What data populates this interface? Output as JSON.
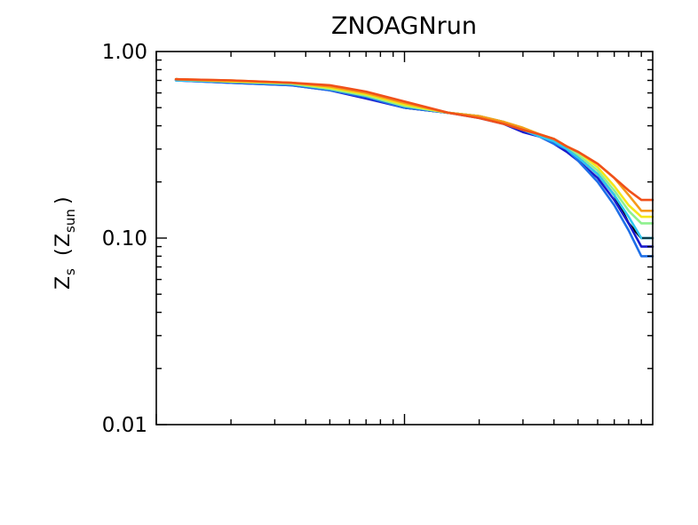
{
  "chart_data": {
    "type": "line",
    "title": "ZNOAGNrun",
    "xlabel": "",
    "ylabel": {
      "main": "Z",
      "main_sub": "s",
      "paren_main": "Z",
      "paren_sub": "sun"
    },
    "x_scale": "log",
    "y_scale": "log",
    "xlim": [
      0.1,
      10
    ],
    "ylim": [
      0.01,
      1.0
    ],
    "y_ticks": [
      {
        "value": 1.0,
        "label": "1.00"
      },
      {
        "value": 0.1,
        "label": "0.10"
      },
      {
        "value": 0.01,
        "label": "0.01"
      }
    ],
    "x_ticks_major": [
      1,
      10
    ],
    "x_tick_labels_shown": false,
    "grid": false,
    "legend": "none",
    "series": [
      {
        "color": "#000000",
        "x": [
          0.12,
          0.2,
          0.35,
          0.5,
          0.7,
          1,
          1.5,
          2,
          2.5,
          3,
          3.5,
          4,
          4.5,
          5,
          6,
          7,
          8,
          9,
          10
        ],
        "y": [
          0.71,
          0.69,
          0.67,
          0.63,
          0.57,
          0.5,
          0.47,
          0.45,
          0.42,
          0.38,
          0.35,
          0.33,
          0.3,
          0.27,
          0.22,
          0.17,
          0.12,
          0.1,
          0.1
        ]
      },
      {
        "color": "#1a1acc",
        "x": [
          0.12,
          0.2,
          0.35,
          0.5,
          0.7,
          1,
          1.5,
          2,
          2.5,
          3,
          3.5,
          4,
          4.5,
          5,
          6,
          7,
          8,
          9,
          10
        ],
        "y": [
          0.7,
          0.68,
          0.66,
          0.62,
          0.56,
          0.5,
          0.47,
          0.44,
          0.41,
          0.37,
          0.35,
          0.32,
          0.29,
          0.26,
          0.21,
          0.16,
          0.12,
          0.09,
          0.09
        ]
      },
      {
        "color": "#1e6fe8",
        "x": [
          0.12,
          0.2,
          0.35,
          0.5,
          0.7,
          1,
          1.5,
          2,
          2.5,
          3,
          3.5,
          4,
          4.5,
          5,
          6,
          7,
          8,
          9,
          10
        ],
        "y": [
          0.7,
          0.68,
          0.66,
          0.62,
          0.57,
          0.5,
          0.47,
          0.45,
          0.41,
          0.38,
          0.35,
          0.32,
          0.3,
          0.26,
          0.2,
          0.15,
          0.11,
          0.08,
          0.08
        ]
      },
      {
        "color": "#2fc8f0",
        "x": [
          0.12,
          0.2,
          0.35,
          0.5,
          0.7,
          1,
          1.5,
          2,
          2.5,
          3,
          3.5,
          4,
          4.5,
          5,
          6,
          7,
          8,
          9,
          10
        ],
        "y": [
          0.7,
          0.69,
          0.67,
          0.63,
          0.58,
          0.51,
          0.47,
          0.45,
          0.42,
          0.38,
          0.35,
          0.33,
          0.3,
          0.27,
          0.22,
          0.17,
          0.13,
          0.1,
          0.1
        ]
      },
      {
        "color": "#8ef08e",
        "x": [
          0.12,
          0.2,
          0.35,
          0.5,
          0.7,
          1,
          1.5,
          2,
          2.5,
          3,
          3.5,
          4,
          4.5,
          5,
          6,
          7,
          8,
          9,
          10
        ],
        "y": [
          0.71,
          0.69,
          0.67,
          0.63,
          0.58,
          0.51,
          0.47,
          0.45,
          0.42,
          0.39,
          0.36,
          0.34,
          0.31,
          0.28,
          0.23,
          0.18,
          0.14,
          0.12,
          0.12
        ]
      },
      {
        "color": "#f5e61a",
        "x": [
          0.12,
          0.2,
          0.35,
          0.5,
          0.7,
          1,
          1.5,
          2,
          2.5,
          3,
          3.5,
          4,
          4.5,
          5,
          6,
          7,
          8,
          9,
          10
        ],
        "y": [
          0.71,
          0.69,
          0.68,
          0.64,
          0.59,
          0.52,
          0.47,
          0.45,
          0.42,
          0.39,
          0.36,
          0.34,
          0.31,
          0.29,
          0.24,
          0.19,
          0.15,
          0.13,
          0.13
        ]
      },
      {
        "color": "#f59a1a",
        "x": [
          0.12,
          0.2,
          0.35,
          0.5,
          0.7,
          1,
          1.5,
          2,
          2.5,
          3,
          3.5,
          4,
          4.5,
          5,
          6,
          7,
          8,
          9,
          10
        ],
        "y": [
          0.71,
          0.7,
          0.68,
          0.65,
          0.6,
          0.53,
          0.47,
          0.45,
          0.42,
          0.39,
          0.36,
          0.34,
          0.31,
          0.29,
          0.25,
          0.21,
          0.17,
          0.14,
          0.14
        ]
      },
      {
        "color": "#f0501a",
        "x": [
          0.12,
          0.2,
          0.35,
          0.5,
          0.7,
          1,
          1.5,
          2,
          2.5,
          3,
          3.5,
          4,
          4.5,
          5,
          6,
          7,
          8,
          9,
          10
        ],
        "y": [
          0.71,
          0.7,
          0.68,
          0.66,
          0.61,
          0.54,
          0.47,
          0.44,
          0.41,
          0.38,
          0.36,
          0.34,
          0.31,
          0.29,
          0.25,
          0.21,
          0.18,
          0.16,
          0.16
        ]
      }
    ]
  }
}
